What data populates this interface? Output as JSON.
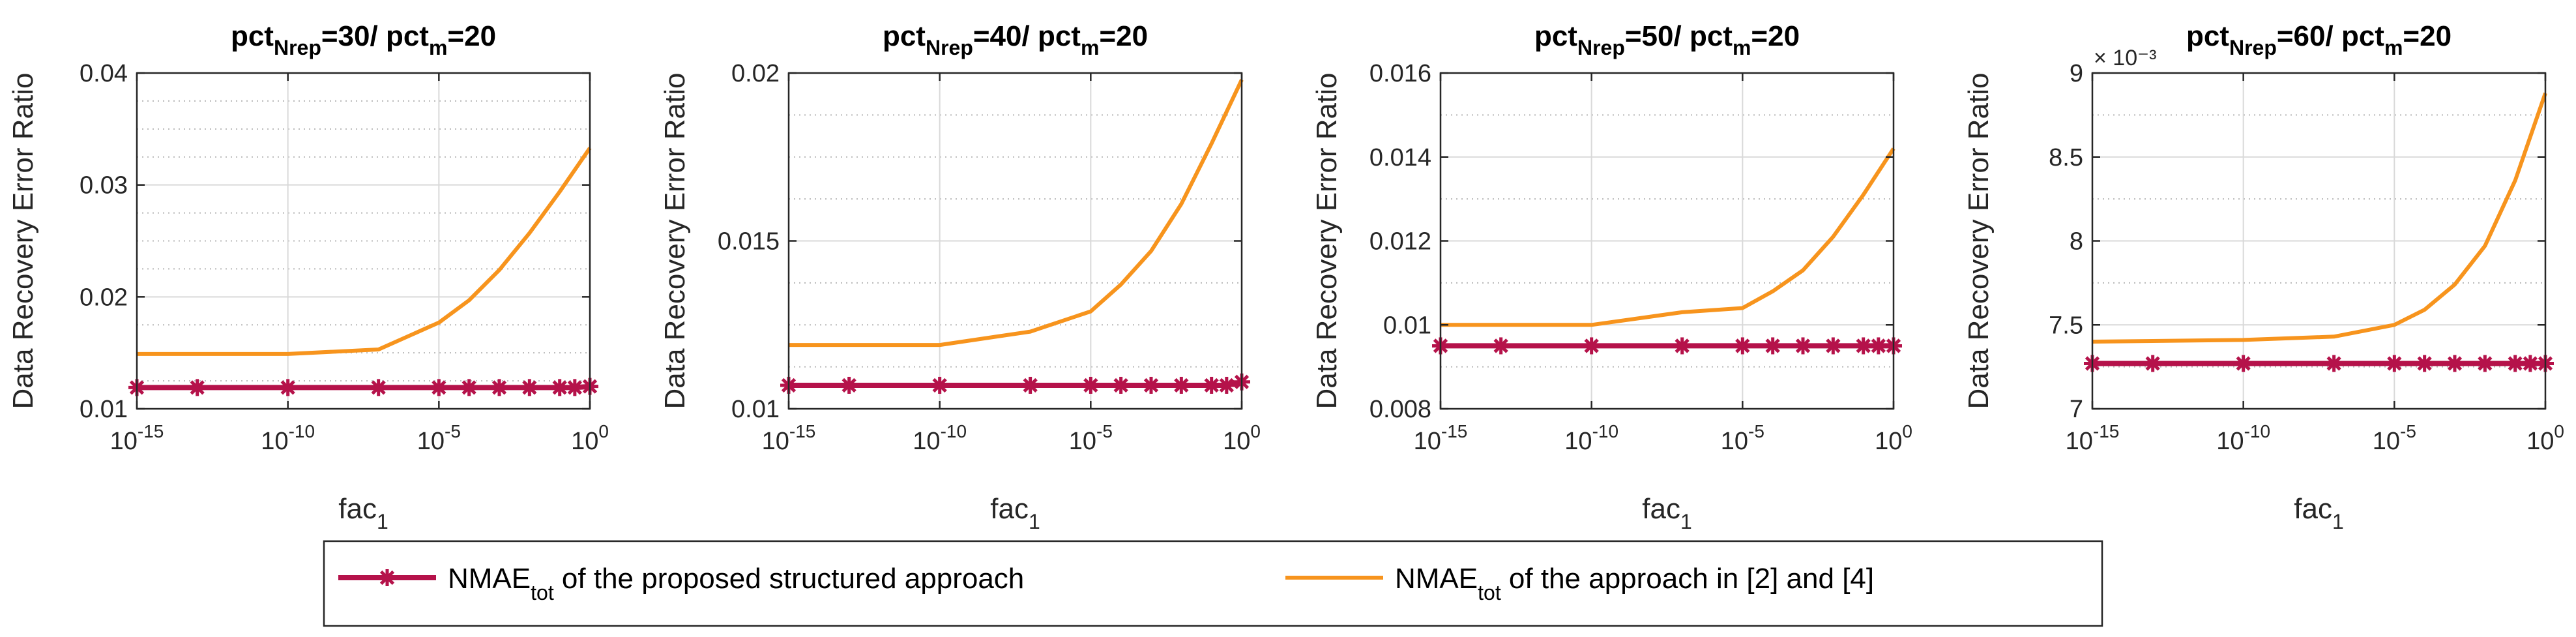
{
  "figure": {
    "legend": {
      "entries": [
        {
          "main": "NMAE",
          "sub": "tot",
          "rest": " of the proposed structured approach",
          "color": "#b5124a",
          "marker": "asterisk"
        },
        {
          "main": "NMAE",
          "sub": "tot",
          "rest": " of the approach in [2] and [4]",
          "color": "#f7941d",
          "marker": "none"
        }
      ]
    }
  },
  "chart_data": [
    {
      "type": "line",
      "title": {
        "a": "pct",
        "a_sub": "Nrep",
        "b": "=30/ pct",
        "b_sub": "m",
        "c": "=20"
      },
      "xlabel": {
        "main": "fac",
        "sub": "1"
      },
      "ylabel": "Data Recovery Error Ratio",
      "xscale": "log",
      "xlim_exp": [
        -15,
        0
      ],
      "xticks_exp": [
        -15,
        -10,
        -5,
        0
      ],
      "ylim": [
        0.01,
        0.04
      ],
      "yticks": [
        0.01,
        0.02,
        0.03,
        0.04
      ],
      "ytick_labels": [
        "0.01",
        "0.02",
        "0.03",
        "0.04"
      ],
      "y_minor_step": 0.0025,
      "y_exponent_label": "",
      "grid": true,
      "series": [
        {
          "name": "NMAE_tot of the proposed structured approach",
          "color": "#b5124a",
          "marker": "asterisk",
          "x_exp": [
            -15,
            -13,
            -10,
            -7,
            -5,
            -4,
            -3,
            -2,
            -1,
            -0.5,
            0
          ],
          "y": [
            0.0119,
            0.0119,
            0.0119,
            0.0119,
            0.0119,
            0.0119,
            0.0119,
            0.0119,
            0.0119,
            0.0119,
            0.012
          ]
        },
        {
          "name": "NMAE_tot of the approach in [2] and [4]",
          "color": "#f7941d",
          "marker": "none",
          "x_exp": [
            -15,
            -10,
            -7,
            -5,
            -4,
            -3,
            -2,
            -1,
            0
          ],
          "y": [
            0.0149,
            0.0149,
            0.0153,
            0.0177,
            0.0197,
            0.0224,
            0.0257,
            0.0294,
            0.0333
          ]
        }
      ]
    },
    {
      "type": "line",
      "title": {
        "a": "pct",
        "a_sub": "Nrep",
        "b": "=40/ pct",
        "b_sub": "m",
        "c": "=20"
      },
      "xlabel": {
        "main": "fac",
        "sub": "1"
      },
      "ylabel": "Data Recovery Error Ratio",
      "xscale": "log",
      "xlim_exp": [
        -15,
        0
      ],
      "xticks_exp": [
        -15,
        -10,
        -5,
        0
      ],
      "ylim": [
        0.01,
        0.02
      ],
      "yticks": [
        0.01,
        0.015,
        0.02
      ],
      "ytick_labels": [
        "0.01",
        "0.015",
        "0.02"
      ],
      "y_minor_step": 0.00125,
      "y_exponent_label": "",
      "grid": true,
      "series": [
        {
          "name": "NMAE_tot of the proposed structured approach",
          "color": "#b5124a",
          "marker": "asterisk",
          "x_exp": [
            -15,
            -13,
            -10,
            -7,
            -5,
            -4,
            -3,
            -2,
            -1,
            -0.5,
            0
          ],
          "y": [
            0.0107,
            0.0107,
            0.0107,
            0.0107,
            0.0107,
            0.0107,
            0.0107,
            0.0107,
            0.0107,
            0.0107,
            0.0108
          ]
        },
        {
          "name": "NMAE_tot of the approach in [2] and [4]",
          "color": "#f7941d",
          "marker": "none",
          "x_exp": [
            -15,
            -10,
            -7,
            -5,
            -4,
            -3,
            -2,
            -1,
            0
          ],
          "y": [
            0.0119,
            0.0119,
            0.0123,
            0.0129,
            0.0137,
            0.0147,
            0.0161,
            0.0179,
            0.0198
          ]
        }
      ]
    },
    {
      "type": "line",
      "title": {
        "a": "pct",
        "a_sub": "Nrep",
        "b": "=50/ pct",
        "b_sub": "m",
        "c": "=20"
      },
      "xlabel": {
        "main": "fac",
        "sub": "1"
      },
      "ylabel": "Data Recovery Error Ratio",
      "xscale": "log",
      "xlim_exp": [
        -15,
        0
      ],
      "xticks_exp": [
        -15,
        -10,
        -5,
        0
      ],
      "ylim": [
        0.008,
        0.016
      ],
      "yticks": [
        0.008,
        0.01,
        0.012,
        0.014,
        0.016
      ],
      "ytick_labels": [
        "0.008",
        "0.01",
        "0.012",
        "0.014",
        "0.016"
      ],
      "y_minor_step": 0.001,
      "y_exponent_label": "",
      "grid": true,
      "series": [
        {
          "name": "NMAE_tot of the proposed structured approach",
          "color": "#b5124a",
          "marker": "asterisk",
          "x_exp": [
            -15,
            -13,
            -10,
            -7,
            -5,
            -4,
            -3,
            -2,
            -1,
            -0.5,
            0
          ],
          "y": [
            0.0095,
            0.0095,
            0.0095,
            0.0095,
            0.0095,
            0.0095,
            0.0095,
            0.0095,
            0.0095,
            0.0095,
            0.0095
          ]
        },
        {
          "name": "NMAE_tot of the approach in [2] and [4]",
          "color": "#f7941d",
          "marker": "none",
          "x_exp": [
            -15,
            -10,
            -7,
            -5,
            -4,
            -3,
            -2,
            -1,
            0
          ],
          "y": [
            0.01,
            0.01,
            0.0103,
            0.0104,
            0.0108,
            0.0113,
            0.0121,
            0.0131,
            0.0142
          ]
        }
      ]
    },
    {
      "type": "line",
      "title": {
        "a": "pct",
        "a_sub": "Nrep",
        "b": "=60/ pct",
        "b_sub": "m",
        "c": "=20"
      },
      "xlabel": {
        "main": "fac",
        "sub": "1"
      },
      "ylabel": "Data Recovery Error Ratio",
      "xscale": "log",
      "xlim_exp": [
        -15,
        0
      ],
      "xticks_exp": [
        -15,
        -10,
        -5,
        0
      ],
      "ylim": [
        7,
        9
      ],
      "yticks": [
        7,
        7.5,
        8,
        8.5,
        9
      ],
      "ytick_labels": [
        "7",
        "7.5",
        "8",
        "8.5",
        "9"
      ],
      "y_minor_step": 0.25,
      "y_exponent_label": "× 10⁻³",
      "grid": true,
      "series": [
        {
          "name": "NMAE_tot of the proposed structured approach",
          "color": "#b5124a",
          "marker": "asterisk",
          "x_exp": [
            -15,
            -13,
            -10,
            -7,
            -5,
            -4,
            -3,
            -2,
            -1,
            -0.5,
            0
          ],
          "y": [
            7.27,
            7.27,
            7.27,
            7.27,
            7.27,
            7.27,
            7.27,
            7.27,
            7.27,
            7.27,
            7.27
          ]
        },
        {
          "name": "NMAE_tot of the approach in [2] and [4]",
          "color": "#f7941d",
          "marker": "none",
          "x_exp": [
            -15,
            -10,
            -7,
            -5,
            -4,
            -3,
            -2,
            -1,
            0
          ],
          "y": [
            7.4,
            7.41,
            7.43,
            7.5,
            7.59,
            7.74,
            7.97,
            8.36,
            8.88
          ]
        }
      ]
    }
  ]
}
